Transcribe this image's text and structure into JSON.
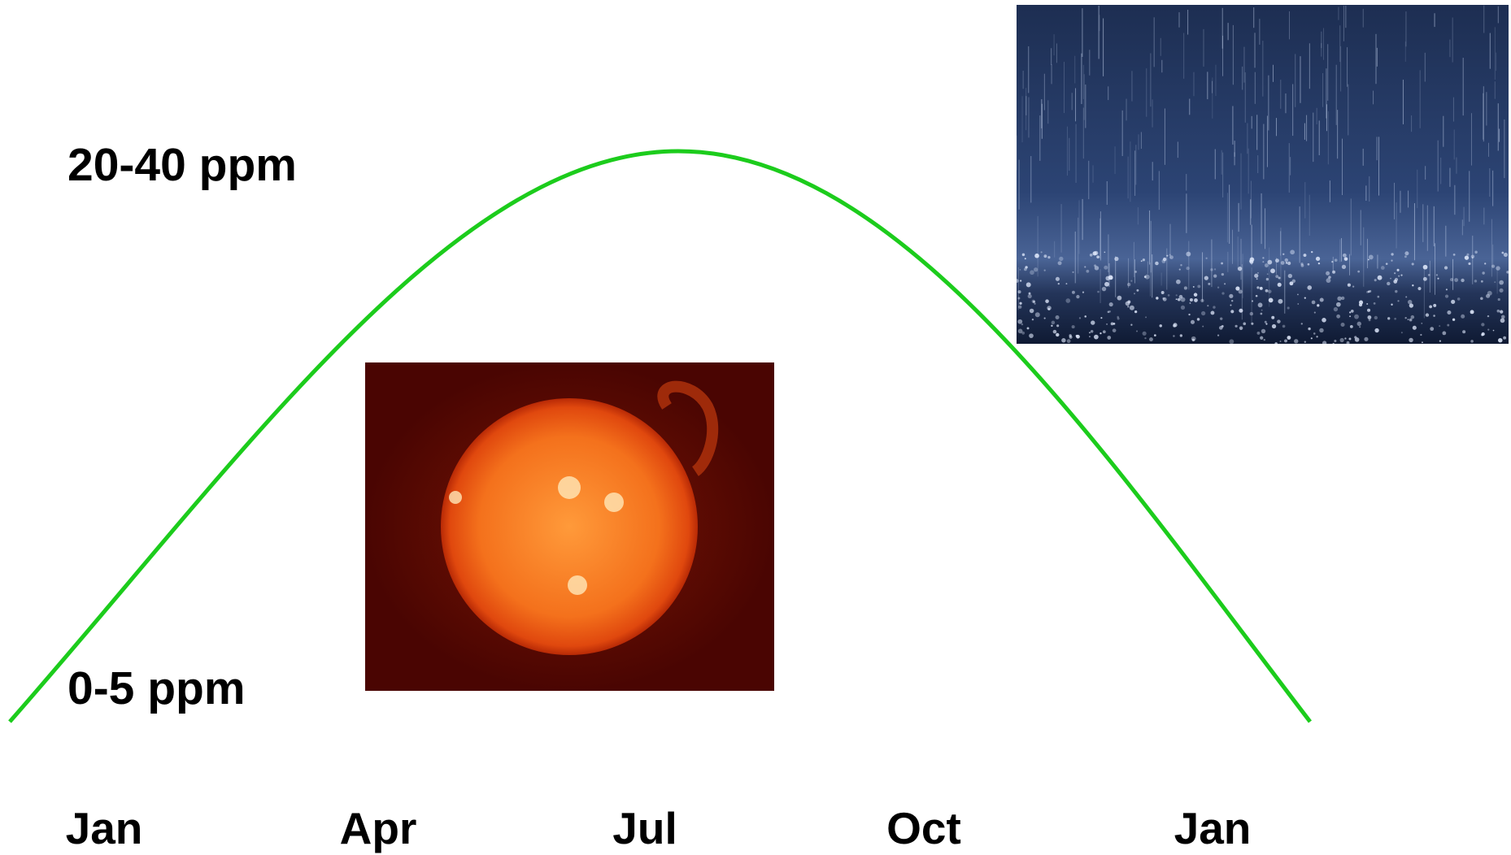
{
  "labels": {
    "high": "20-40 ppm",
    "low": "0-5 ppm"
  },
  "months": [
    "Jan",
    "Apr",
    "Jul",
    "Oct",
    "Jan"
  ]
}
